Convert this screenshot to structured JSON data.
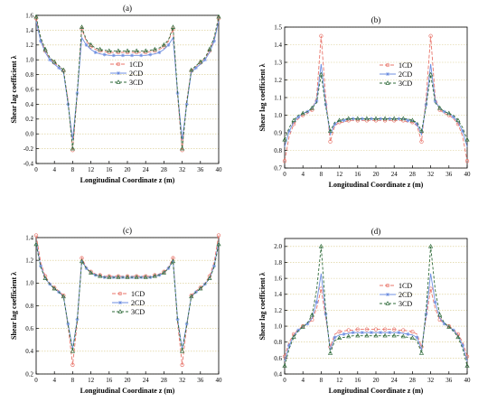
{
  "chart_data": [
    {
      "type": "line",
      "panel_label": "(a)",
      "xlabel": "Longitudinal Coordinate z (m)",
      "ylabel": "Shear lag coefficient λ",
      "xlim": [
        0,
        40
      ],
      "ylim": [
        -0.4,
        1.6
      ],
      "xticks": [
        "0",
        "4",
        "8",
        "12",
        "16",
        "20",
        "24",
        "28",
        "32",
        "36",
        "40"
      ],
      "yticks": [
        "-0.4",
        "-0.2",
        "0.0",
        "0.2",
        "0.4",
        "0.6",
        "0.8",
        "1.0",
        "1.2",
        "1.4",
        "1.6"
      ],
      "grid": "horizontal dotted",
      "legend": "center-left",
      "x": [
        0,
        1,
        2,
        3,
        4,
        5,
        6,
        7,
        8,
        9,
        10,
        11,
        12,
        13,
        14,
        15,
        16,
        17,
        18,
        19,
        20,
        21,
        22,
        23,
        24,
        25,
        26,
        27,
        28,
        29,
        30,
        31,
        32,
        33,
        34,
        35,
        36,
        37,
        38,
        39,
        40
      ],
      "series": [
        {
          "name": "1CD",
          "values": [
            1.56,
            1.28,
            1.12,
            1.02,
            0.96,
            0.91,
            0.85,
            0.45,
            -0.22,
            0.52,
            1.42,
            1.25,
            1.18,
            1.14,
            1.12,
            1.11,
            1.1,
            1.1,
            1.1,
            1.1,
            1.1,
            1.1,
            1.1,
            1.1,
            1.1,
            1.11,
            1.12,
            1.14,
            1.18,
            1.25,
            1.42,
            0.52,
            -0.22,
            0.45,
            0.85,
            0.91,
            0.96,
            1.02,
            1.12,
            1.28,
            1.56
          ]
        },
        {
          "name": "2CD",
          "values": [
            1.52,
            1.25,
            1.1,
            1.0,
            0.94,
            0.89,
            0.83,
            0.4,
            -0.08,
            0.55,
            1.3,
            1.2,
            1.14,
            1.1,
            1.08,
            1.07,
            1.06,
            1.06,
            1.06,
            1.06,
            1.06,
            1.06,
            1.06,
            1.06,
            1.06,
            1.07,
            1.08,
            1.1,
            1.14,
            1.2,
            1.3,
            0.55,
            -0.08,
            0.4,
            0.83,
            0.89,
            0.94,
            1.0,
            1.1,
            1.25,
            1.52
          ]
        },
        {
          "name": "3CD",
          "values": [
            1.58,
            1.3,
            1.14,
            1.03,
            0.97,
            0.92,
            0.86,
            0.42,
            -0.2,
            0.56,
            1.44,
            1.27,
            1.2,
            1.16,
            1.14,
            1.13,
            1.12,
            1.12,
            1.12,
            1.12,
            1.12,
            1.12,
            1.12,
            1.12,
            1.12,
            1.13,
            1.14,
            1.16,
            1.2,
            1.27,
            1.44,
            0.56,
            -0.2,
            0.42,
            0.86,
            0.92,
            0.97,
            1.03,
            1.14,
            1.3,
            1.58
          ]
        }
      ]
    },
    {
      "type": "line",
      "panel_label": "(b)",
      "xlabel": "Longitudinal Coordinate z (m)",
      "ylabel": "Shear lag coefficient λ",
      "xlim": [
        0,
        40
      ],
      "ylim": [
        0.7,
        1.5
      ],
      "xticks": [
        "0",
        "4",
        "8",
        "12",
        "16",
        "20",
        "24",
        "28",
        "32",
        "36",
        "40"
      ],
      "yticks": [
        "0.7",
        "0.8",
        "0.9",
        "1.0",
        "1.1",
        "1.2",
        "1.3",
        "1.4",
        "1.5"
      ],
      "grid": "horizontal dotted",
      "legend": "center-right",
      "x": [
        0,
        1,
        2,
        3,
        4,
        5,
        6,
        7,
        8,
        9,
        10,
        11,
        12,
        13,
        14,
        15,
        16,
        17,
        18,
        19,
        20,
        21,
        22,
        23,
        24,
        25,
        26,
        27,
        28,
        29,
        30,
        31,
        32,
        33,
        34,
        35,
        36,
        37,
        38,
        39,
        40
      ],
      "series": [
        {
          "name": "1CD",
          "values": [
            0.74,
            0.88,
            0.95,
            0.98,
            1.0,
            1.01,
            1.03,
            1.1,
            1.45,
            1.1,
            0.85,
            0.94,
            0.96,
            0.96,
            0.97,
            0.97,
            0.97,
            0.97,
            0.97,
            0.97,
            0.97,
            0.97,
            0.97,
            0.97,
            0.97,
            0.97,
            0.97,
            0.96,
            0.96,
            0.94,
            0.85,
            1.1,
            1.45,
            1.1,
            1.03,
            1.01,
            1.0,
            0.98,
            0.95,
            0.88,
            0.74
          ]
        },
        {
          "name": "2CD",
          "values": [
            0.82,
            0.91,
            0.96,
            0.99,
            1.01,
            1.02,
            1.04,
            1.08,
            1.29,
            1.06,
            0.89,
            0.95,
            0.97,
            0.97,
            0.98,
            0.98,
            0.98,
            0.98,
            0.98,
            0.98,
            0.98,
            0.98,
            0.98,
            0.98,
            0.98,
            0.98,
            0.98,
            0.97,
            0.97,
            0.95,
            0.89,
            1.06,
            1.29,
            1.08,
            1.04,
            1.02,
            1.01,
            0.99,
            0.96,
            0.91,
            0.82
          ]
        },
        {
          "name": "3CD",
          "values": [
            0.86,
            0.93,
            0.97,
            1.0,
            1.01,
            1.02,
            1.04,
            1.07,
            1.23,
            1.05,
            0.91,
            0.96,
            0.97,
            0.98,
            0.98,
            0.98,
            0.98,
            0.98,
            0.98,
            0.98,
            0.98,
            0.98,
            0.98,
            0.98,
            0.98,
            0.98,
            0.98,
            0.98,
            0.97,
            0.96,
            0.91,
            1.05,
            1.23,
            1.07,
            1.04,
            1.02,
            1.01,
            1.0,
            0.97,
            0.93,
            0.86
          ]
        }
      ]
    },
    {
      "type": "line",
      "panel_label": "(c)",
      "xlabel": "Longitudinal Coordinate z (m)",
      "ylabel": "Shear lag coefficient λ",
      "xlim": [
        0,
        40
      ],
      "ylim": [
        0.2,
        1.4
      ],
      "xticks": [
        "0",
        "4",
        "8",
        "12",
        "16",
        "20",
        "24",
        "28",
        "32",
        "36",
        "40"
      ],
      "yticks": [
        "0.2",
        "0.4",
        "0.6",
        "0.8",
        "1.0",
        "1.2",
        "1.4"
      ],
      "grid": "horizontal dotted",
      "legend": "center",
      "x": [
        0,
        1,
        2,
        3,
        4,
        5,
        6,
        7,
        8,
        9,
        10,
        11,
        12,
        13,
        14,
        15,
        16,
        17,
        18,
        19,
        20,
        21,
        22,
        23,
        24,
        25,
        26,
        27,
        28,
        29,
        30,
        31,
        32,
        33,
        34,
        35,
        36,
        37,
        38,
        39,
        40
      ],
      "series": [
        {
          "name": "1CD",
          "values": [
            1.42,
            1.18,
            1.06,
            1.0,
            0.96,
            0.93,
            0.89,
            0.62,
            0.28,
            0.65,
            1.22,
            1.14,
            1.1,
            1.08,
            1.07,
            1.06,
            1.06,
            1.06,
            1.06,
            1.06,
            1.06,
            1.06,
            1.06,
            1.06,
            1.06,
            1.06,
            1.07,
            1.08,
            1.1,
            1.14,
            1.22,
            0.65,
            0.28,
            0.62,
            0.89,
            0.93,
            0.96,
            1.0,
            1.06,
            1.18,
            1.42
          ]
        },
        {
          "name": "2CD",
          "values": [
            1.36,
            1.15,
            1.04,
            0.99,
            0.95,
            0.92,
            0.88,
            0.64,
            0.42,
            0.68,
            1.2,
            1.13,
            1.09,
            1.07,
            1.06,
            1.05,
            1.05,
            1.05,
            1.05,
            1.05,
            1.05,
            1.05,
            1.05,
            1.05,
            1.05,
            1.05,
            1.06,
            1.07,
            1.09,
            1.13,
            1.2,
            0.68,
            0.42,
            0.64,
            0.88,
            0.92,
            0.95,
            0.99,
            1.04,
            1.15,
            1.36
          ]
        },
        {
          "name": "3CD",
          "values": [
            1.34,
            1.14,
            1.04,
            0.99,
            0.95,
            0.92,
            0.88,
            0.63,
            0.4,
            0.67,
            1.19,
            1.13,
            1.09,
            1.07,
            1.06,
            1.05,
            1.05,
            1.05,
            1.05,
            1.05,
            1.05,
            1.05,
            1.05,
            1.05,
            1.05,
            1.05,
            1.06,
            1.07,
            1.09,
            1.13,
            1.19,
            0.67,
            0.4,
            0.63,
            0.88,
            0.92,
            0.95,
            0.99,
            1.04,
            1.14,
            1.34
          ]
        }
      ]
    },
    {
      "type": "line",
      "panel_label": "(d)",
      "xlabel": "Longitudinal Coordinate z (m)",
      "ylabel": "Shear lag coefficient λ",
      "xlim": [
        0,
        40
      ],
      "ylim": [
        0.4,
        2.1
      ],
      "xticks": [
        "0",
        "4",
        "8",
        "12",
        "16",
        "20",
        "24",
        "28",
        "32",
        "36",
        "40"
      ],
      "yticks": [
        "0.4",
        "0.6",
        "0.8",
        "1.0",
        "1.2",
        "1.4",
        "1.6",
        "1.8",
        "2.0"
      ],
      "grid": "horizontal dotted",
      "legend": "center-right",
      "x": [
        0,
        1,
        2,
        3,
        4,
        5,
        6,
        7,
        8,
        9,
        10,
        11,
        12,
        13,
        14,
        15,
        16,
        17,
        18,
        19,
        20,
        21,
        22,
        23,
        24,
        25,
        26,
        27,
        28,
        29,
        30,
        31,
        32,
        33,
        34,
        35,
        36,
        37,
        38,
        39,
        40
      ],
      "series": [
        {
          "name": "1CD",
          "values": [
            0.62,
            0.8,
            0.9,
            0.96,
            1.0,
            1.03,
            1.08,
            1.22,
            1.47,
            1.1,
            0.74,
            0.9,
            0.93,
            0.94,
            0.95,
            0.95,
            0.96,
            0.96,
            0.96,
            0.96,
            0.96,
            0.96,
            0.96,
            0.96,
            0.96,
            0.95,
            0.95,
            0.94,
            0.93,
            0.9,
            0.74,
            1.1,
            1.47,
            1.22,
            1.08,
            1.03,
            1.0,
            0.96,
            0.9,
            0.8,
            0.62
          ]
        },
        {
          "name": "2CD",
          "values": [
            0.56,
            0.76,
            0.88,
            0.95,
            0.99,
            1.03,
            1.1,
            1.3,
            1.66,
            1.15,
            0.7,
            0.86,
            0.89,
            0.9,
            0.91,
            0.92,
            0.92,
            0.92,
            0.92,
            0.92,
            0.92,
            0.92,
            0.92,
            0.92,
            0.92,
            0.92,
            0.91,
            0.9,
            0.89,
            0.86,
            0.7,
            1.15,
            1.66,
            1.3,
            1.1,
            1.03,
            0.99,
            0.95,
            0.88,
            0.76,
            0.56
          ]
        },
        {
          "name": "3CD",
          "values": [
            0.5,
            0.72,
            0.86,
            0.94,
            0.99,
            1.04,
            1.14,
            1.45,
            2.0,
            1.2,
            0.66,
            0.82,
            0.85,
            0.86,
            0.87,
            0.88,
            0.88,
            0.88,
            0.88,
            0.88,
            0.88,
            0.88,
            0.88,
            0.88,
            0.88,
            0.88,
            0.87,
            0.86,
            0.85,
            0.82,
            0.66,
            1.2,
            2.0,
            1.45,
            1.14,
            1.04,
            0.99,
            0.94,
            0.86,
            0.72,
            0.5
          ]
        }
      ]
    }
  ],
  "colors": {
    "1CD": "#e8746a",
    "2CD": "#6f8fe0",
    "3CD": "#2f6b3a",
    "grid": "#d8c98a"
  }
}
